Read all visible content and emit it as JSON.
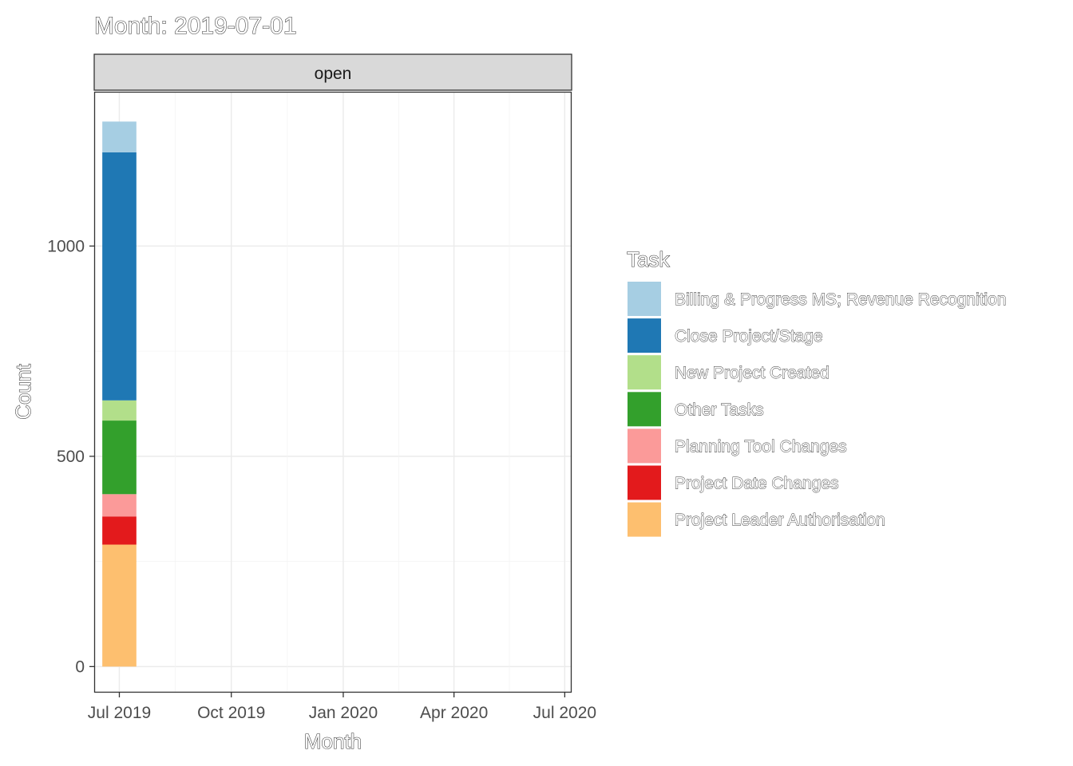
{
  "chart_data": {
    "type": "bar",
    "title": "Month: 2019-07-01",
    "facet": "open",
    "xlabel": "Month",
    "ylabel": "Count",
    "x_ticks": [
      "Jul 2019",
      "Oct 2019",
      "Jan 2020",
      "Apr 2020",
      "Jul 2020"
    ],
    "x_range": [
      "2019-06-11",
      "2020-07-06"
    ],
    "y_ticks": [
      "0",
      "500",
      "1000"
    ],
    "ylim": [
      -60,
      1365
    ],
    "grid": true,
    "legend_title": "Task",
    "legend_position": "right",
    "categories": [
      "Jul 2019"
    ],
    "series": [
      {
        "name": "Project Leader Authorisation",
        "color": "#FDBF6F",
        "values": [
          290
        ]
      },
      {
        "name": "Project Date Changes",
        "color": "#E31A1C",
        "values": [
          67
        ]
      },
      {
        "name": "Planning Tool Changes",
        "color": "#FB9A99",
        "values": [
          53
        ]
      },
      {
        "name": "Other Tasks",
        "color": "#33A02C",
        "values": [
          175
        ]
      },
      {
        "name": "New Project Created",
        "color": "#B2DF8A",
        "values": [
          48
        ]
      },
      {
        "name": "Close Project/Stage",
        "color": "#1F78B4",
        "values": [
          590
        ]
      },
      {
        "name": "Billing & Progress MS; Revenue Recognition",
        "color": "#A6CEE3",
        "values": [
          73
        ]
      }
    ],
    "legend_order": [
      "Billing & Progress MS; Revenue Recognition",
      "Close Project/Stage",
      "New Project Created",
      "Other Tasks",
      "Planning Tool Changes",
      "Project Date Changes",
      "Project Leader Authorisation"
    ]
  }
}
